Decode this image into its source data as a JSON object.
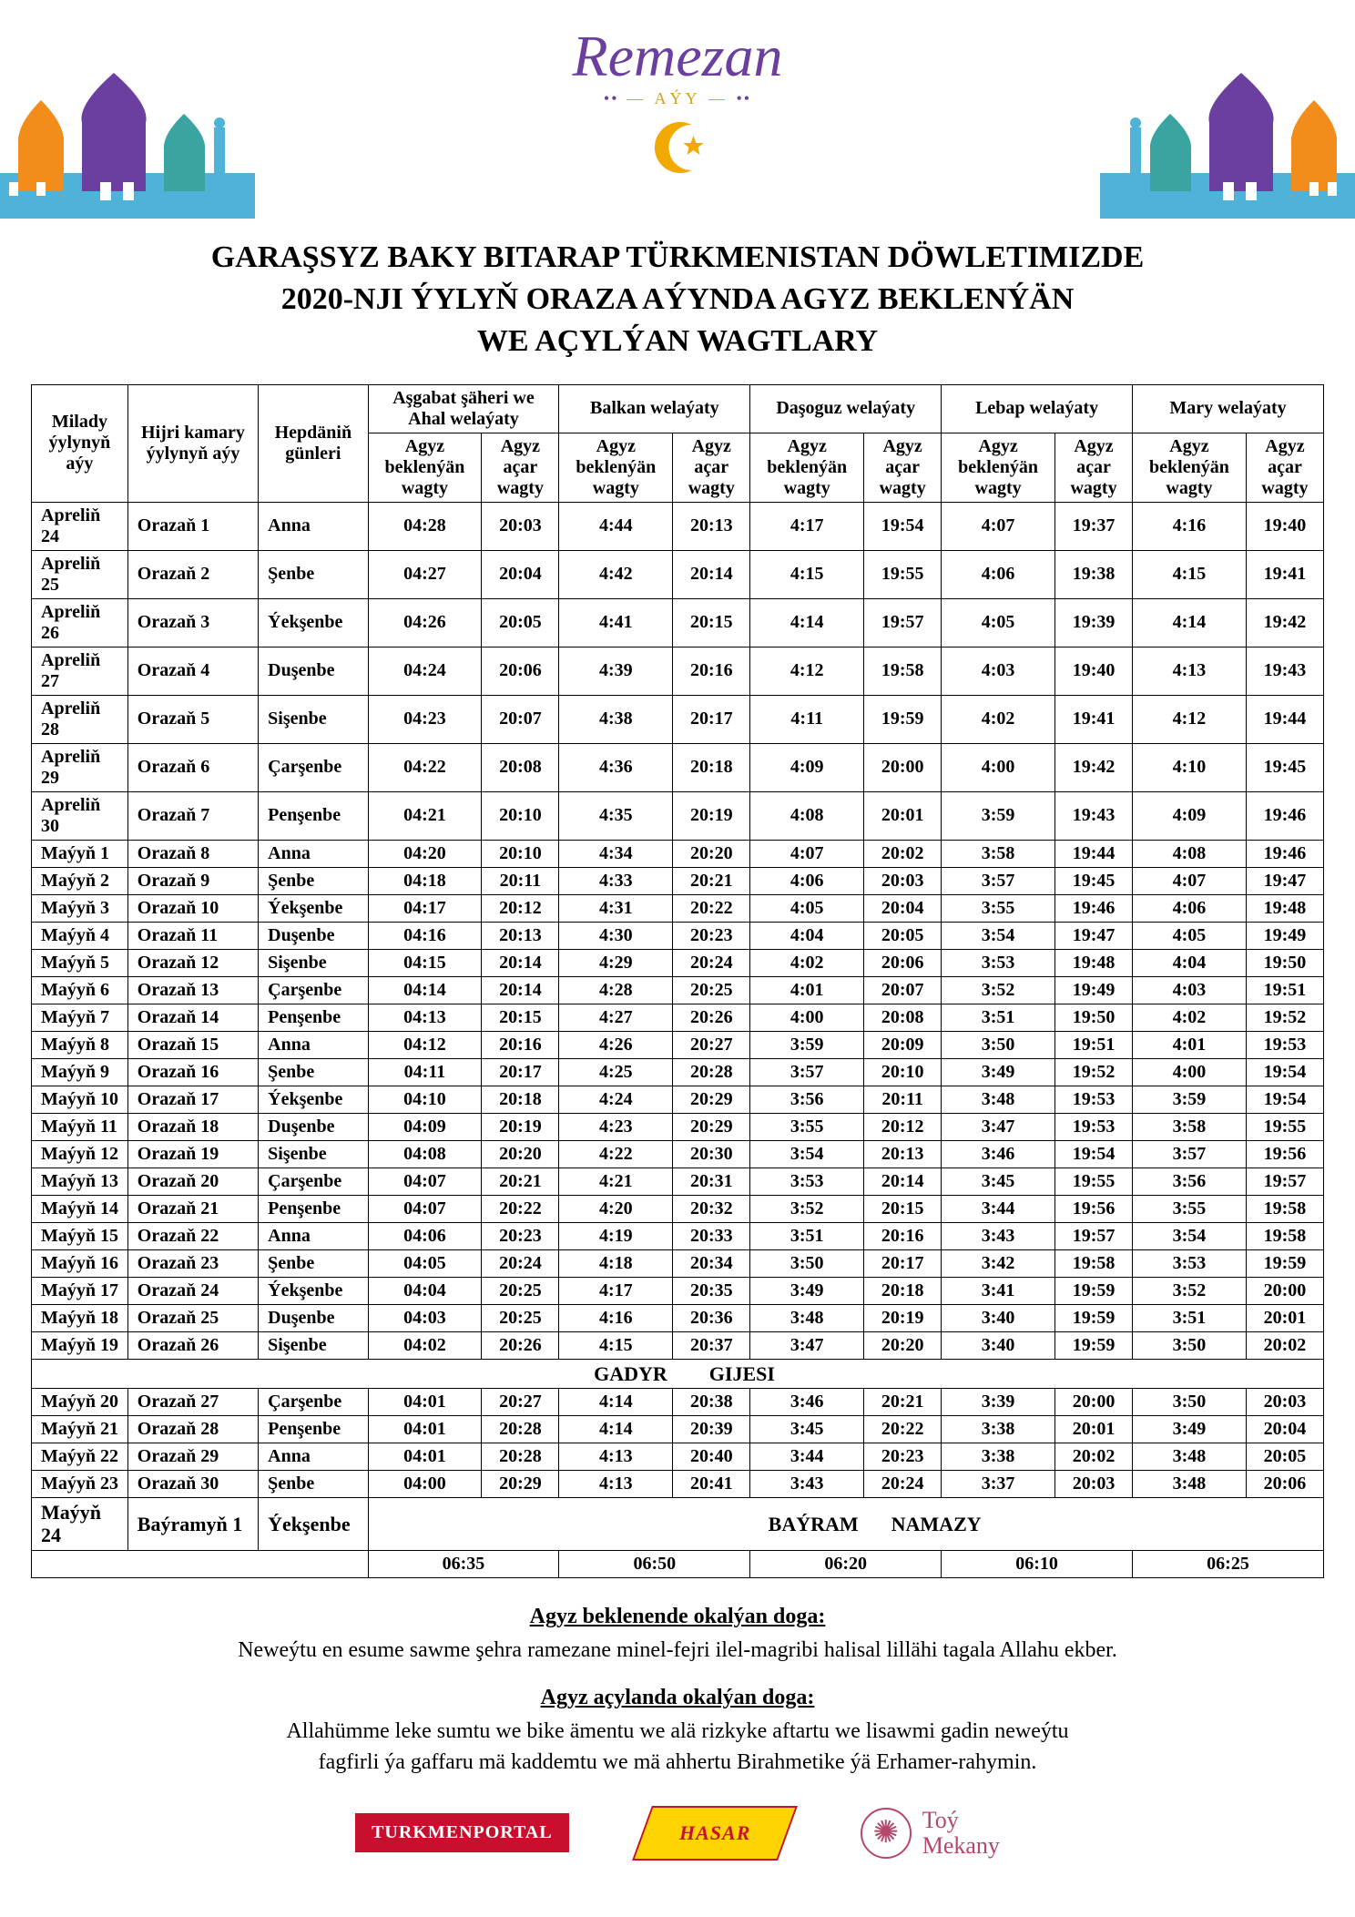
{
  "header": {
    "title_script": "Remezan",
    "subtitle": "AÝY",
    "crescent_color": "#f2a900"
  },
  "main_heading": {
    "line1": "GARAŞSYZ BAKY BITARAP TÜRKMENISTAN DÖWLETIMIZDE",
    "line2": "2020-NJI ÝYLYŇ ORAZA AÝYNDA AGYZ BEKLENÝÄN",
    "line3": "WE AÇYLÝAN WAGTLARY"
  },
  "table": {
    "header_row1": {
      "milady": "Milady ýylynyň aýy",
      "hijri": "Hijri kamary ýylynyň aýy",
      "weekday": "Hepdäniň günleri",
      "regions": [
        "Aşgabat şäheri we Ahal welaýaty",
        "Balkan welaýaty",
        "Daşoguz welaýaty",
        "Lebap welaýaty",
        "Mary welaýaty"
      ]
    },
    "header_row2": {
      "bek": "Agyz beklenýän wagty",
      "acar": "Agyz açar wagty"
    },
    "rows": [
      {
        "m": "Apreliň 24",
        "h": "Orazaň 1",
        "w": "Anna",
        "t": [
          "04:28",
          "20:03",
          "4:44",
          "20:13",
          "4:17",
          "19:54",
          "4:07",
          "19:37",
          "4:16",
          "19:40"
        ]
      },
      {
        "m": "Apreliň 25",
        "h": "Orazaň 2",
        "w": "Şenbe",
        "t": [
          "04:27",
          "20:04",
          "4:42",
          "20:14",
          "4:15",
          "19:55",
          "4:06",
          "19:38",
          "4:15",
          "19:41"
        ]
      },
      {
        "m": "Apreliň 26",
        "h": "Orazaň 3",
        "w": "Ýekşenbe",
        "t": [
          "04:26",
          "20:05",
          "4:41",
          "20:15",
          "4:14",
          "19:57",
          "4:05",
          "19:39",
          "4:14",
          "19:42"
        ]
      },
      {
        "m": "Apreliň 27",
        "h": "Orazaň 4",
        "w": "Duşenbe",
        "t": [
          "04:24",
          "20:06",
          "4:39",
          "20:16",
          "4:12",
          "19:58",
          "4:03",
          "19:40",
          "4:13",
          "19:43"
        ]
      },
      {
        "m": "Apreliň 28",
        "h": "Orazaň 5",
        "w": "Sişenbe",
        "t": [
          "04:23",
          "20:07",
          "4:38",
          "20:17",
          "4:11",
          "19:59",
          "4:02",
          "19:41",
          "4:12",
          "19:44"
        ]
      },
      {
        "m": "Apreliň 29",
        "h": "Orazaň 6",
        "w": "Çarşenbe",
        "t": [
          "04:22",
          "20:08",
          "4:36",
          "20:18",
          "4:09",
          "20:00",
          "4:00",
          "19:42",
          "4:10",
          "19:45"
        ]
      },
      {
        "m": "Apreliň 30",
        "h": "Orazaň 7",
        "w": "Penşenbe",
        "t": [
          "04:21",
          "20:10",
          "4:35",
          "20:19",
          "4:08",
          "20:01",
          "3:59",
          "19:43",
          "4:09",
          "19:46"
        ]
      },
      {
        "m": "Maýyň 1",
        "h": "Orazaň 8",
        "w": "Anna",
        "t": [
          "04:20",
          "20:10",
          "4:34",
          "20:20",
          "4:07",
          "20:02",
          "3:58",
          "19:44",
          "4:08",
          "19:46"
        ]
      },
      {
        "m": "Maýyň 2",
        "h": "Orazaň 9",
        "w": "Şenbe",
        "t": [
          "04:18",
          "20:11",
          "4:33",
          "20:21",
          "4:06",
          "20:03",
          "3:57",
          "19:45",
          "4:07",
          "19:47"
        ]
      },
      {
        "m": "Maýyň 3",
        "h": "Orazaň 10",
        "w": "Ýekşenbe",
        "t": [
          "04:17",
          "20:12",
          "4:31",
          "20:22",
          "4:05",
          "20:04",
          "3:55",
          "19:46",
          "4:06",
          "19:48"
        ]
      },
      {
        "m": "Maýyň 4",
        "h": "Orazaň 11",
        "w": "Duşenbe",
        "t": [
          "04:16",
          "20:13",
          "4:30",
          "20:23",
          "4:04",
          "20:05",
          "3:54",
          "19:47",
          "4:05",
          "19:49"
        ]
      },
      {
        "m": "Maýyň 5",
        "h": "Orazaň 12",
        "w": "Sişenbe",
        "t": [
          "04:15",
          "20:14",
          "4:29",
          "20:24",
          "4:02",
          "20:06",
          "3:53",
          "19:48",
          "4:04",
          "19:50"
        ]
      },
      {
        "m": "Maýyň 6",
        "h": "Orazaň 13",
        "w": "Çarşenbe",
        "t": [
          "04:14",
          "20:14",
          "4:28",
          "20:25",
          "4:01",
          "20:07",
          "3:52",
          "19:49",
          "4:03",
          "19:51"
        ]
      },
      {
        "m": "Maýyň 7",
        "h": "Orazaň 14",
        "w": "Penşenbe",
        "t": [
          "04:13",
          "20:15",
          "4:27",
          "20:26",
          "4:00",
          "20:08",
          "3:51",
          "19:50",
          "4:02",
          "19:52"
        ]
      },
      {
        "m": "Maýyň 8",
        "h": "Orazaň 15",
        "w": "Anna",
        "t": [
          "04:12",
          "20:16",
          "4:26",
          "20:27",
          "3:59",
          "20:09",
          "3:50",
          "19:51",
          "4:01",
          "19:53"
        ]
      },
      {
        "m": "Maýyň 9",
        "h": "Orazaň 16",
        "w": "Şenbe",
        "t": [
          "04:11",
          "20:17",
          "4:25",
          "20:28",
          "3:57",
          "20:10",
          "3:49",
          "19:52",
          "4:00",
          "19:54"
        ]
      },
      {
        "m": "Maýyň 10",
        "h": "Orazaň 17",
        "w": "Ýekşenbe",
        "t": [
          "04:10",
          "20:18",
          "4:24",
          "20:29",
          "3:56",
          "20:11",
          "3:48",
          "19:53",
          "3:59",
          "19:54"
        ]
      },
      {
        "m": "Maýyň 11",
        "h": "Orazaň 18",
        "w": "Duşenbe",
        "t": [
          "04:09",
          "20:19",
          "4:23",
          "20:29",
          "3:55",
          "20:12",
          "3:47",
          "19:53",
          "3:58",
          "19:55"
        ]
      },
      {
        "m": "Maýyň 12",
        "h": "Orazaň 19",
        "w": "Sişenbe",
        "t": [
          "04:08",
          "20:20",
          "4:22",
          "20:30",
          "3:54",
          "20:13",
          "3:46",
          "19:54",
          "3:57",
          "19:56"
        ]
      },
      {
        "m": "Maýyň 13",
        "h": "Orazaň 20",
        "w": "Çarşenbe",
        "t": [
          "04:07",
          "20:21",
          "4:21",
          "20:31",
          "3:53",
          "20:14",
          "3:45",
          "19:55",
          "3:56",
          "19:57"
        ]
      },
      {
        "m": "Maýyň 14",
        "h": "Orazaň 21",
        "w": "Penşenbe",
        "t": [
          "04:07",
          "20:22",
          "4:20",
          "20:32",
          "3:52",
          "20:15",
          "3:44",
          "19:56",
          "3:55",
          "19:58"
        ]
      },
      {
        "m": "Maýyň 15",
        "h": "Orazaň 22",
        "w": "Anna",
        "t": [
          "04:06",
          "20:23",
          "4:19",
          "20:33",
          "3:51",
          "20:16",
          "3:43",
          "19:57",
          "3:54",
          "19:58"
        ]
      },
      {
        "m": "Maýyň 16",
        "h": "Orazaň 23",
        "w": "Şenbe",
        "t": [
          "04:05",
          "20:24",
          "4:18",
          "20:34",
          "3:50",
          "20:17",
          "3:42",
          "19:58",
          "3:53",
          "19:59"
        ]
      },
      {
        "m": "Maýyň 17",
        "h": "Orazaň 24",
        "w": "Ýekşenbe",
        "t": [
          "04:04",
          "20:25",
          "4:17",
          "20:35",
          "3:49",
          "20:18",
          "3:41",
          "19:59",
          "3:52",
          "20:00"
        ]
      },
      {
        "m": "Maýyň 18",
        "h": "Orazaň 25",
        "w": "Duşenbe",
        "t": [
          "04:03",
          "20:25",
          "4:16",
          "20:36",
          "3:48",
          "20:19",
          "3:40",
          "19:59",
          "3:51",
          "20:01"
        ]
      },
      {
        "m": "Maýyň 19",
        "h": "Orazaň 26",
        "w": "Sişenbe",
        "t": [
          "04:02",
          "20:26",
          "4:15",
          "20:37",
          "3:47",
          "20:20",
          "3:40",
          "19:59",
          "3:50",
          "20:02"
        ]
      }
    ],
    "gadyr_label_left": "GADYR",
    "gadyr_label_right": "GIJESI",
    "rows2": [
      {
        "m": "Maýyň 20",
        "h": "Orazaň 27",
        "w": "Çarşenbe",
        "t": [
          "04:01",
          "20:27",
          "4:14",
          "20:38",
          "3:46",
          "20:21",
          "3:39",
          "20:00",
          "3:50",
          "20:03"
        ]
      },
      {
        "m": "Maýyň 21",
        "h": "Orazaň 28",
        "w": "Penşenbe",
        "t": [
          "04:01",
          "20:28",
          "4:14",
          "20:39",
          "3:45",
          "20:22",
          "3:38",
          "20:01",
          "3:49",
          "20:04"
        ]
      },
      {
        "m": "Maýyň 22",
        "h": "Orazaň 29",
        "w": "Anna",
        "t": [
          "04:01",
          "20:28",
          "4:13",
          "20:40",
          "3:44",
          "20:23",
          "3:38",
          "20:02",
          "3:48",
          "20:05"
        ]
      },
      {
        "m": "Maýyň 23",
        "h": "Orazaň 30",
        "w": "Şenbe",
        "t": [
          "04:00",
          "20:29",
          "4:13",
          "20:41",
          "3:43",
          "20:24",
          "3:37",
          "20:03",
          "3:48",
          "20:06"
        ]
      }
    ],
    "bayram_row": {
      "m": "Maýyň 24",
      "h": "Baýramyň 1",
      "w": "Ýekşenbe",
      "label_left": "BAÝRAM",
      "label_right": "NAMAZY"
    },
    "bayram_times": [
      "06:35",
      "06:50",
      "06:20",
      "06:10",
      "06:25"
    ]
  },
  "prayers": {
    "title1": "Agyz beklenende okalýan doga:",
    "text1": "Neweýtu en esume sawme şehra ramezane minel-fejri ilel-magribi halisal lillähi tagala Allahu ekber.",
    "title2": "Agyz açylanda okalýan doga:",
    "text2a": "Allahümme leke sumtu we bike ämentu we alä rizkyke aftartu we lisawmi gadin neweýtu",
    "text2b": "fagfirli ýa gaffaru mä kaddemtu we mä ahhertu Birahmetike ýä Erhamer-rahymin."
  },
  "footer": {
    "tp": "TURKMENPORTAL",
    "hasar": "HASAR",
    "toy1": "Toý",
    "toy2": "Mekany"
  },
  "colors": {
    "mosque_blue": "#4fb3d9",
    "mosque_purple": "#6b3fa0",
    "mosque_orange": "#f28c1b",
    "mosque_teal": "#3aa5a0",
    "accent_gold": "#d4a017"
  }
}
